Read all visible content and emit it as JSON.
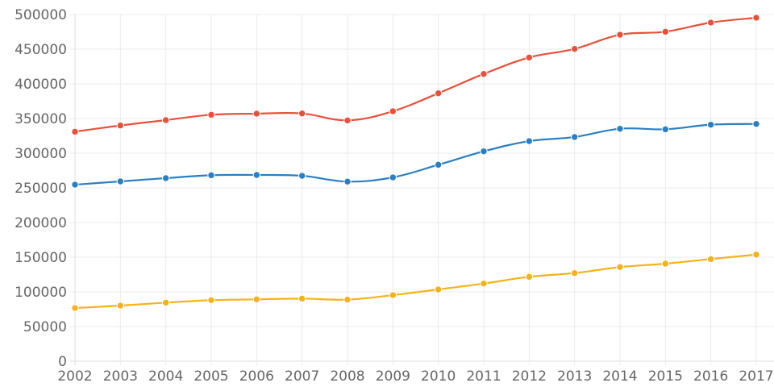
{
  "chart_data": {
    "type": "line",
    "title": "",
    "xlabel": "",
    "ylabel": "",
    "x": [
      2002,
      2003,
      2004,
      2005,
      2006,
      2007,
      2008,
      2009,
      2010,
      2011,
      2012,
      2013,
      2014,
      2015,
      2016,
      2017
    ],
    "ylim": [
      0,
      500000
    ],
    "yticks": [
      0,
      50000,
      100000,
      150000,
      200000,
      250000,
      300000,
      350000,
      400000,
      450000,
      500000
    ],
    "grid": true,
    "legend": null,
    "series": [
      {
        "name": "series-red",
        "color": "#e9503a",
        "values": [
          331000,
          340000,
          347700,
          355400,
          357000,
          357300,
          347300,
          360500,
          386400,
          414300,
          438000,
          450400,
          470900,
          475200,
          488400,
          495300
        ]
      },
      {
        "name": "series-blue",
        "color": "#2a7fc2",
        "values": [
          254600,
          259300,
          264000,
          268200,
          268600,
          267400,
          259000,
          265100,
          283300,
          302700,
          317400,
          323300,
          335300,
          334500,
          341100,
          342200
        ]
      },
      {
        "name": "series-yellow",
        "color": "#f5b21a",
        "values": [
          76700,
          80200,
          84500,
          88000,
          89200,
          90300,
          88800,
          95300,
          103500,
          112000,
          121700,
          127100,
          135700,
          140700,
          147300,
          153800
        ]
      }
    ]
  },
  "style": {
    "grid_color": "#ebebeb",
    "axis_color": "#dddddd",
    "text_color": "#666666"
  }
}
